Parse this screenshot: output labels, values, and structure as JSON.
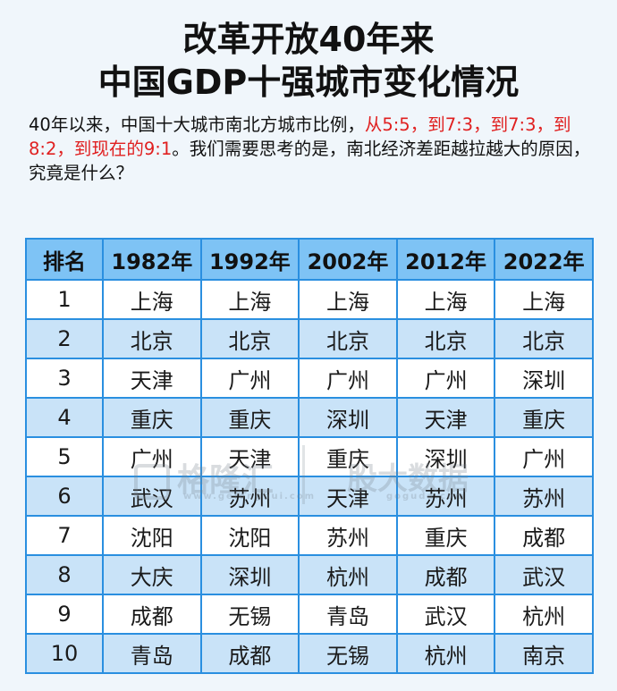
{
  "title_line1": "改革开放40年来",
  "title_line2": "中国GDP十强城市变化情况",
  "intro": {
    "part1": "40年以来，中国十大城市南北方城市比例，",
    "highlight": "从5:5，到7:3，到7:3，到8:2，到现在的9:1",
    "part2": "。我们需要思考的是，南北经济差距越拉越大的原因，究竟是什么？"
  },
  "table": {
    "headers": [
      "排名",
      "1982年",
      "1992年",
      "2002年",
      "2012年",
      "2022年"
    ],
    "rows": [
      [
        "1",
        "上海",
        "上海",
        "上海",
        "上海",
        "上海"
      ],
      [
        "2",
        "北京",
        "北京",
        "北京",
        "北京",
        "北京"
      ],
      [
        "3",
        "天津",
        "广州",
        "广州",
        "广州",
        "深圳"
      ],
      [
        "4",
        "重庆",
        "重庆",
        "深圳",
        "天津",
        "重庆"
      ],
      [
        "5",
        "广州",
        "天津",
        "重庆",
        "深圳",
        "广州"
      ],
      [
        "6",
        "武汉",
        "苏州",
        "天津",
        "苏州",
        "苏州"
      ],
      [
        "7",
        "沈阳",
        "沈阳",
        "苏州",
        "重庆",
        "成都"
      ],
      [
        "8",
        "大庆",
        "深圳",
        "杭州",
        "成都",
        "武汉"
      ],
      [
        "9",
        "成都",
        "无锡",
        "青岛",
        "武汉",
        "杭州"
      ],
      [
        "10",
        "青岛",
        "成都",
        "无锡",
        "杭州",
        "南京"
      ]
    ]
  },
  "watermarks": {
    "left_main": "格隆汇",
    "left_sub": "www.gelonghui.com",
    "right_main": "股大数据",
    "right_sub": "goguda.com"
  },
  "colors": {
    "header_bg": "#7ec3f5",
    "border": "#2a8fe0",
    "stripe": "#c9e3f8",
    "highlight": "#e02020"
  }
}
